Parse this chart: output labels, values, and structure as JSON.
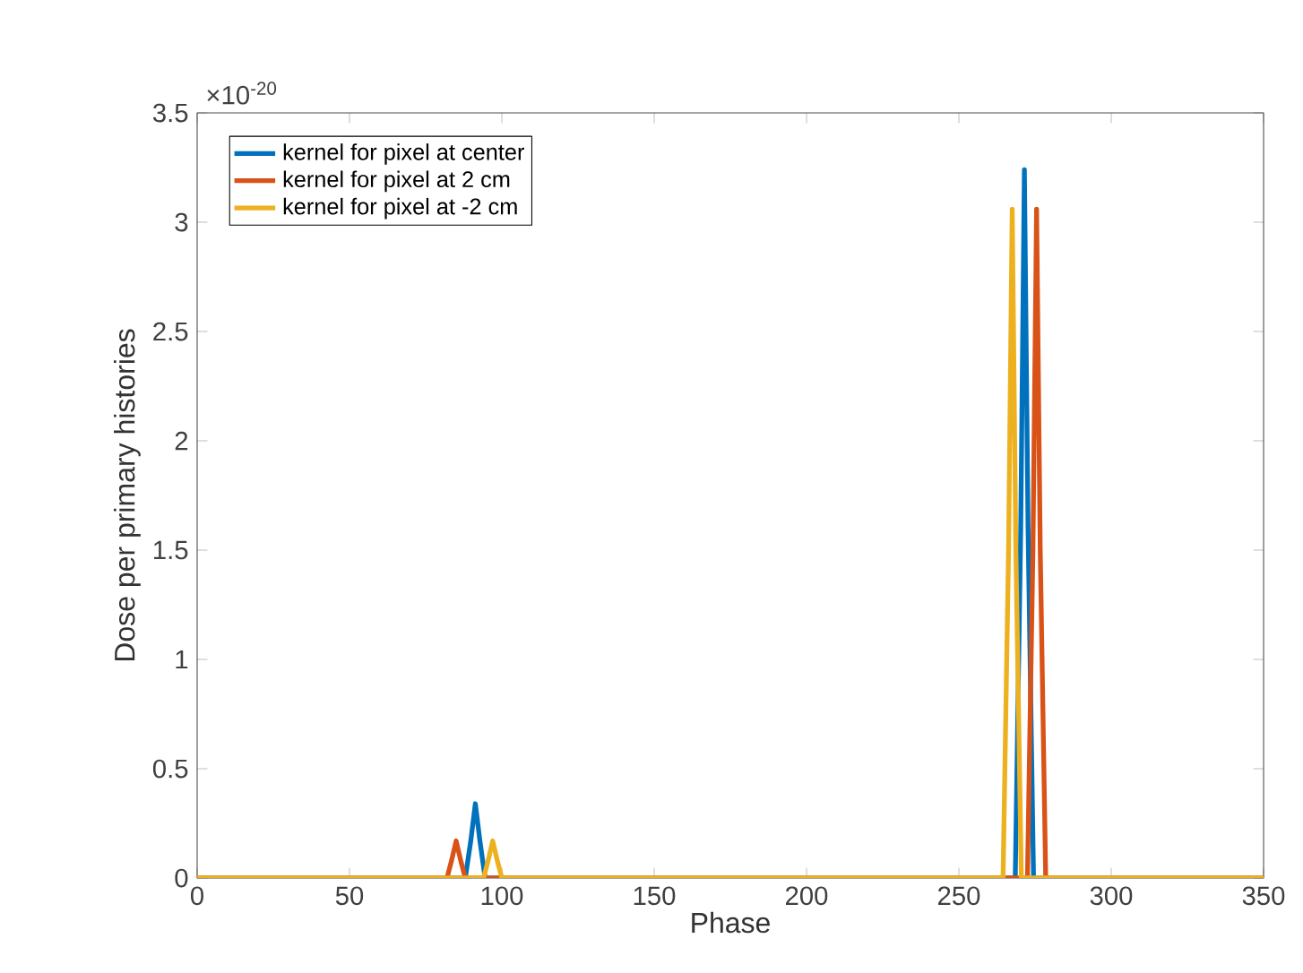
{
  "chart_data": {
    "type": "line",
    "xlabel": "Phase",
    "ylabel": "Dose per primary histories",
    "annotations": [
      "×10$^{-20}$"
    ],
    "xlim": [
      0,
      350
    ],
    "xticks": [
      0,
      50,
      100,
      150,
      200,
      250,
      300,
      350
    ],
    "ylim": [
      0,
      3.5
    ],
    "yticks": [
      0,
      0.5,
      1,
      1.5,
      2,
      2.5,
      3,
      3.5
    ],
    "legend": "top left",
    "grid": false,
    "marker": "none",
    "line_style": "solid",
    "series": [
      {
        "name": "kernel for pixel at center",
        "color": "#0072bd",
        "x": [
          0,
          88,
          89.8,
          91.3,
          92.8,
          94.5,
          268.5,
          270.3,
          271.5,
          272.7,
          274.5,
          350
        ],
        "values": [
          0,
          0,
          0.17,
          0.34,
          0.17,
          0,
          0,
          1.6,
          3.24,
          1.6,
          0,
          0
        ]
      },
      {
        "name": "kernel for pixel at 2 cm",
        "color": "#d95319",
        "x": [
          0,
          82,
          83.5,
          85,
          86.5,
          88,
          272.5,
          274.3,
          275.5,
          276.7,
          278.5,
          350
        ],
        "values": [
          0,
          0,
          0.08,
          0.17,
          0.08,
          0,
          0,
          1.5,
          3.06,
          1.5,
          0,
          0
        ]
      },
      {
        "name": "kernel for pixel at -2 cm",
        "color": "#edb120",
        "x": [
          0,
          94,
          95.5,
          97,
          98.5,
          100,
          264.5,
          266.3,
          267.5,
          268.7,
          270.5,
          350
        ],
        "values": [
          0,
          0,
          0.08,
          0.17,
          0.08,
          0,
          0,
          1.5,
          3.06,
          1.5,
          0,
          0
        ]
      }
    ]
  }
}
